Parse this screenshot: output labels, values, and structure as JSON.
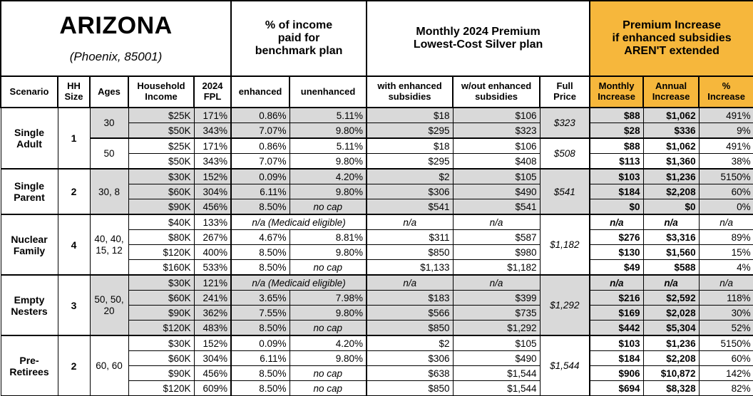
{
  "colors": {
    "accent_orange": "#F6B73C",
    "row_shade_gray": "#D9D9D9",
    "border": "#000000"
  },
  "title": {
    "state": "ARIZONA",
    "subtitle": "(Phoenix, 85001)"
  },
  "header": {
    "benchmark_group": "% of income\npaid for\nbenchmark plan",
    "premium_group": "Monthly 2024 Premium\nLowest-Cost Silver plan",
    "increase_group": "Premium Increase\nif enhanced subsidies\nAREN'T extended"
  },
  "columns": {
    "scenario": "Scenario",
    "hh_size": "HH\nSize",
    "ages": "Ages",
    "income": "Household\nIncome",
    "fpl": "2024\nFPL",
    "enhanced": "enhanced",
    "unenhanced": "unenhanced",
    "with_sub": "with enhanced\nsubsidies",
    "wout_sub": "w/out enhanced\nsubsidies",
    "full_price": "Full\nPrice",
    "monthly": "Monthly\nIncrease",
    "annual": "Annual\nIncrease",
    "pct": "%\nIncrease"
  },
  "na_text": "n/a",
  "medicaid_note": "n/a (Medicaid eligible)",
  "no_cap_text": "no cap",
  "groups": [
    {
      "scenario": "Single Adult",
      "hh_size": "1",
      "subgroups": [
        {
          "ages": "30",
          "shaded": true,
          "full_price": "$323",
          "rows": [
            {
              "income": "$25K",
              "fpl": "171%",
              "enhanced": "0.86%",
              "unenhanced": "5.11%",
              "with_sub": "$18",
              "wout_sub": "$106",
              "monthly": "$88",
              "annual": "$1,062",
              "pct": "491%"
            },
            {
              "income": "$50K",
              "fpl": "343%",
              "enhanced": "7.07%",
              "unenhanced": "9.80%",
              "with_sub": "$295",
              "wout_sub": "$323",
              "monthly": "$28",
              "annual": "$336",
              "pct": "9%"
            }
          ]
        },
        {
          "ages": "50",
          "shaded": false,
          "full_price": "$508",
          "rows": [
            {
              "income": "$25K",
              "fpl": "171%",
              "enhanced": "0.86%",
              "unenhanced": "5.11%",
              "with_sub": "$18",
              "wout_sub": "$106",
              "monthly": "$88",
              "annual": "$1,062",
              "pct": "491%"
            },
            {
              "income": "$50K",
              "fpl": "343%",
              "enhanced": "7.07%",
              "unenhanced": "9.80%",
              "with_sub": "$295",
              "wout_sub": "$408",
              "monthly": "$113",
              "annual": "$1,360",
              "pct": "38%"
            }
          ]
        }
      ]
    },
    {
      "scenario": "Single Parent",
      "hh_size": "2",
      "subgroups": [
        {
          "ages": "30, 8",
          "shaded": true,
          "full_price": "$541",
          "rows": [
            {
              "income": "$30K",
              "fpl": "152%",
              "enhanced": "0.09%",
              "unenhanced": "4.20%",
              "with_sub": "$2",
              "wout_sub": "$105",
              "monthly": "$103",
              "annual": "$1,236",
              "pct": "5150%"
            },
            {
              "income": "$60K",
              "fpl": "304%",
              "enhanced": "6.11%",
              "unenhanced": "9.80%",
              "with_sub": "$306",
              "wout_sub": "$490",
              "monthly": "$184",
              "annual": "$2,208",
              "pct": "60%"
            },
            {
              "income": "$90K",
              "fpl": "456%",
              "enhanced": "8.50%",
              "unenhanced": "no cap",
              "with_sub": "$541",
              "wout_sub": "$541",
              "monthly": "$0",
              "annual": "$0",
              "pct": "0%"
            }
          ]
        }
      ]
    },
    {
      "scenario": "Nuclear Family",
      "hh_size": "4",
      "subgroups": [
        {
          "ages": "40, 40, 15, 12",
          "shaded": false,
          "full_price": "$1,182",
          "rows": [
            {
              "income": "$40K",
              "fpl": "133%",
              "medicaid": true,
              "with_sub": "n/a",
              "wout_sub": "n/a",
              "monthly": "n/a",
              "annual": "n/a",
              "pct": "n/a"
            },
            {
              "income": "$80K",
              "fpl": "267%",
              "enhanced": "4.67%",
              "unenhanced": "8.81%",
              "with_sub": "$311",
              "wout_sub": "$587",
              "monthly": "$276",
              "annual": "$3,316",
              "pct": "89%"
            },
            {
              "income": "$120K",
              "fpl": "400%",
              "enhanced": "8.50%",
              "unenhanced": "9.80%",
              "with_sub": "$850",
              "wout_sub": "$980",
              "monthly": "$130",
              "annual": "$1,560",
              "pct": "15%"
            },
            {
              "income": "$160K",
              "fpl": "533%",
              "enhanced": "8.50%",
              "unenhanced": "no cap",
              "with_sub": "$1,133",
              "wout_sub": "$1,182",
              "monthly": "$49",
              "annual": "$588",
              "pct": "4%"
            }
          ]
        }
      ]
    },
    {
      "scenario": "Empty Nesters",
      "hh_size": "3",
      "subgroups": [
        {
          "ages": "50, 50, 20",
          "shaded": true,
          "full_price": "$1,292",
          "rows": [
            {
              "income": "$30K",
              "fpl": "121%",
              "medicaid": true,
              "with_sub": "n/a",
              "wout_sub": "n/a",
              "monthly": "n/a",
              "annual": "n/a",
              "pct": "n/a"
            },
            {
              "income": "$60K",
              "fpl": "241%",
              "enhanced": "3.65%",
              "unenhanced": "7.98%",
              "with_sub": "$183",
              "wout_sub": "$399",
              "monthly": "$216",
              "annual": "$2,592",
              "pct": "118%"
            },
            {
              "income": "$90K",
              "fpl": "362%",
              "enhanced": "7.55%",
              "unenhanced": "9.80%",
              "with_sub": "$566",
              "wout_sub": "$735",
              "monthly": "$169",
              "annual": "$2,028",
              "pct": "30%"
            },
            {
              "income": "$120K",
              "fpl": "483%",
              "enhanced": "8.50%",
              "unenhanced": "no cap",
              "with_sub": "$850",
              "wout_sub": "$1,292",
              "monthly": "$442",
              "annual": "$5,304",
              "pct": "52%"
            }
          ]
        }
      ]
    },
    {
      "scenario": "Pre-Retirees",
      "hh_size": "2",
      "subgroups": [
        {
          "ages": "60, 60",
          "shaded": false,
          "full_price": "$1,544",
          "rows": [
            {
              "income": "$30K",
              "fpl": "152%",
              "enhanced": "0.09%",
              "unenhanced": "4.20%",
              "with_sub": "$2",
              "wout_sub": "$105",
              "monthly": "$103",
              "annual": "$1,236",
              "pct": "5150%"
            },
            {
              "income": "$60K",
              "fpl": "304%",
              "enhanced": "6.11%",
              "unenhanced": "9.80%",
              "with_sub": "$306",
              "wout_sub": "$490",
              "monthly": "$184",
              "annual": "$2,208",
              "pct": "60%"
            },
            {
              "income": "$90K",
              "fpl": "456%",
              "enhanced": "8.50%",
              "unenhanced": "no cap",
              "with_sub": "$638",
              "wout_sub": "$1,544",
              "monthly": "$906",
              "annual": "$10,872",
              "pct": "142%"
            },
            {
              "income": "$120K",
              "fpl": "609%",
              "enhanced": "8.50%",
              "unenhanced": "no cap",
              "with_sub": "$850",
              "wout_sub": "$1,544",
              "monthly": "$694",
              "annual": "$8,328",
              "pct": "82%"
            }
          ]
        }
      ]
    }
  ]
}
